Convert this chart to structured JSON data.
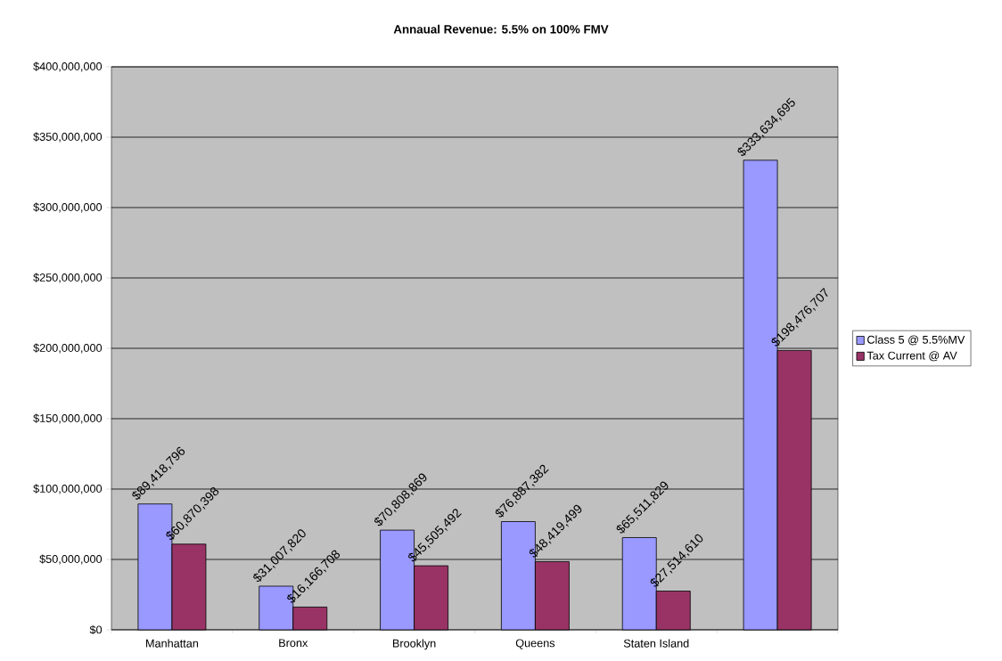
{
  "chart_data": {
    "type": "bar",
    "title": "Annaual Revenue: 5.5% on 100% FMV",
    "categories": [
      "Manhattan",
      "Bronx",
      "Brooklyn",
      "Queens",
      "Staten Island",
      null
    ],
    "series": [
      {
        "name": "Class 5 @ 5.5%MV",
        "color": "#9999ff",
        "values": [
          89418796,
          31007820,
          70808869,
          76887382,
          65511829,
          333634695
        ],
        "value_labels": [
          "$89,418,796",
          "$31,007,820",
          "$70,808,869",
          "$76,887,382",
          "$65,511,829",
          "$333,634,695"
        ]
      },
      {
        "name": "Tax Current @ AV",
        "color": "#993366",
        "values": [
          60870398,
          16166708,
          45505492,
          48419499,
          27514610,
          198476707
        ],
        "value_labels": [
          "$60,870,398",
          "$16,166,708",
          "$45,505,492",
          "$48,419,499",
          "$27,514,610",
          "$198,476,707"
        ]
      }
    ],
    "ylim": [
      0,
      400000000
    ],
    "yticks": [
      {
        "value": 0,
        "label": "$0"
      },
      {
        "value": 50000000,
        "label": "$50,000,000"
      },
      {
        "value": 100000000,
        "label": "$100,000,000"
      },
      {
        "value": 150000000,
        "label": "$150,000,000"
      },
      {
        "value": 200000000,
        "label": "$200,000,000"
      },
      {
        "value": 250000000,
        "label": "$250,000,000"
      },
      {
        "value": 300000000,
        "label": "$300,000,000"
      },
      {
        "value": 350000000,
        "label": "$350,000,000"
      },
      {
        "value": 400000000,
        "label": "$400,000,000"
      }
    ],
    "grid": "y",
    "legend": "right"
  }
}
